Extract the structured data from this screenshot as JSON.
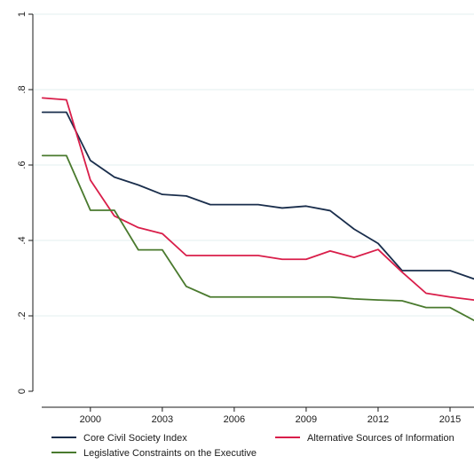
{
  "chart_data": {
    "type": "line",
    "title": "",
    "xlabel": "",
    "ylabel": "",
    "xlim": [
      1997.6,
      2016
    ],
    "ylim": [
      0,
      1
    ],
    "x": [
      1998,
      1999,
      2000,
      2001,
      2002,
      2003,
      2004,
      2005,
      2006,
      2007,
      2008,
      2009,
      2010,
      2011,
      2012,
      2013,
      2014,
      2015,
      2016
    ],
    "x_ticks": [
      {
        "value": 2000,
        "label": "2000"
      },
      {
        "value": 2003,
        "label": "2003"
      },
      {
        "value": 2006,
        "label": "2006"
      },
      {
        "value": 2009,
        "label": "2009"
      },
      {
        "value": 2012,
        "label": "2012"
      },
      {
        "value": 2015,
        "label": "2015"
      }
    ],
    "y_ticks": [
      {
        "value": 0,
        "label": "0"
      },
      {
        "value": 0.2,
        "label": ".2"
      },
      {
        "value": 0.4,
        "label": ".4"
      },
      {
        "value": 0.6,
        "label": ".6"
      },
      {
        "value": 0.8,
        "label": ".8"
      },
      {
        "value": 1,
        "label": "1"
      }
    ],
    "grid": true,
    "grid_color": "#e3efef",
    "legend_position": "bottom",
    "series": [
      {
        "name": "Core Civil Society Index",
        "color": "#1a2e4c",
        "values": [
          0.74,
          0.74,
          0.612,
          0.568,
          0.547,
          0.522,
          0.518,
          0.495,
          0.495,
          0.495,
          0.486,
          0.491,
          0.479,
          0.43,
          0.392,
          0.32,
          0.32,
          0.32,
          0.298
        ]
      },
      {
        "name": "Alternative Sources of Information",
        "color": "#d91e4a",
        "values": [
          0.778,
          0.773,
          0.56,
          0.465,
          0.434,
          0.418,
          0.36,
          0.36,
          0.36,
          0.36,
          0.35,
          0.35,
          0.372,
          0.355,
          0.376,
          0.316,
          0.26,
          0.25,
          0.242
        ]
      },
      {
        "name": "Legislative Constraints on the Executive",
        "color": "#4a7a2e",
        "values": [
          0.625,
          0.625,
          0.48,
          0.48,
          0.375,
          0.375,
          0.278,
          0.25,
          0.25,
          0.25,
          0.25,
          0.25,
          0.25,
          0.245,
          0.242,
          0.24,
          0.222,
          0.222,
          0.188
        ]
      }
    ]
  }
}
